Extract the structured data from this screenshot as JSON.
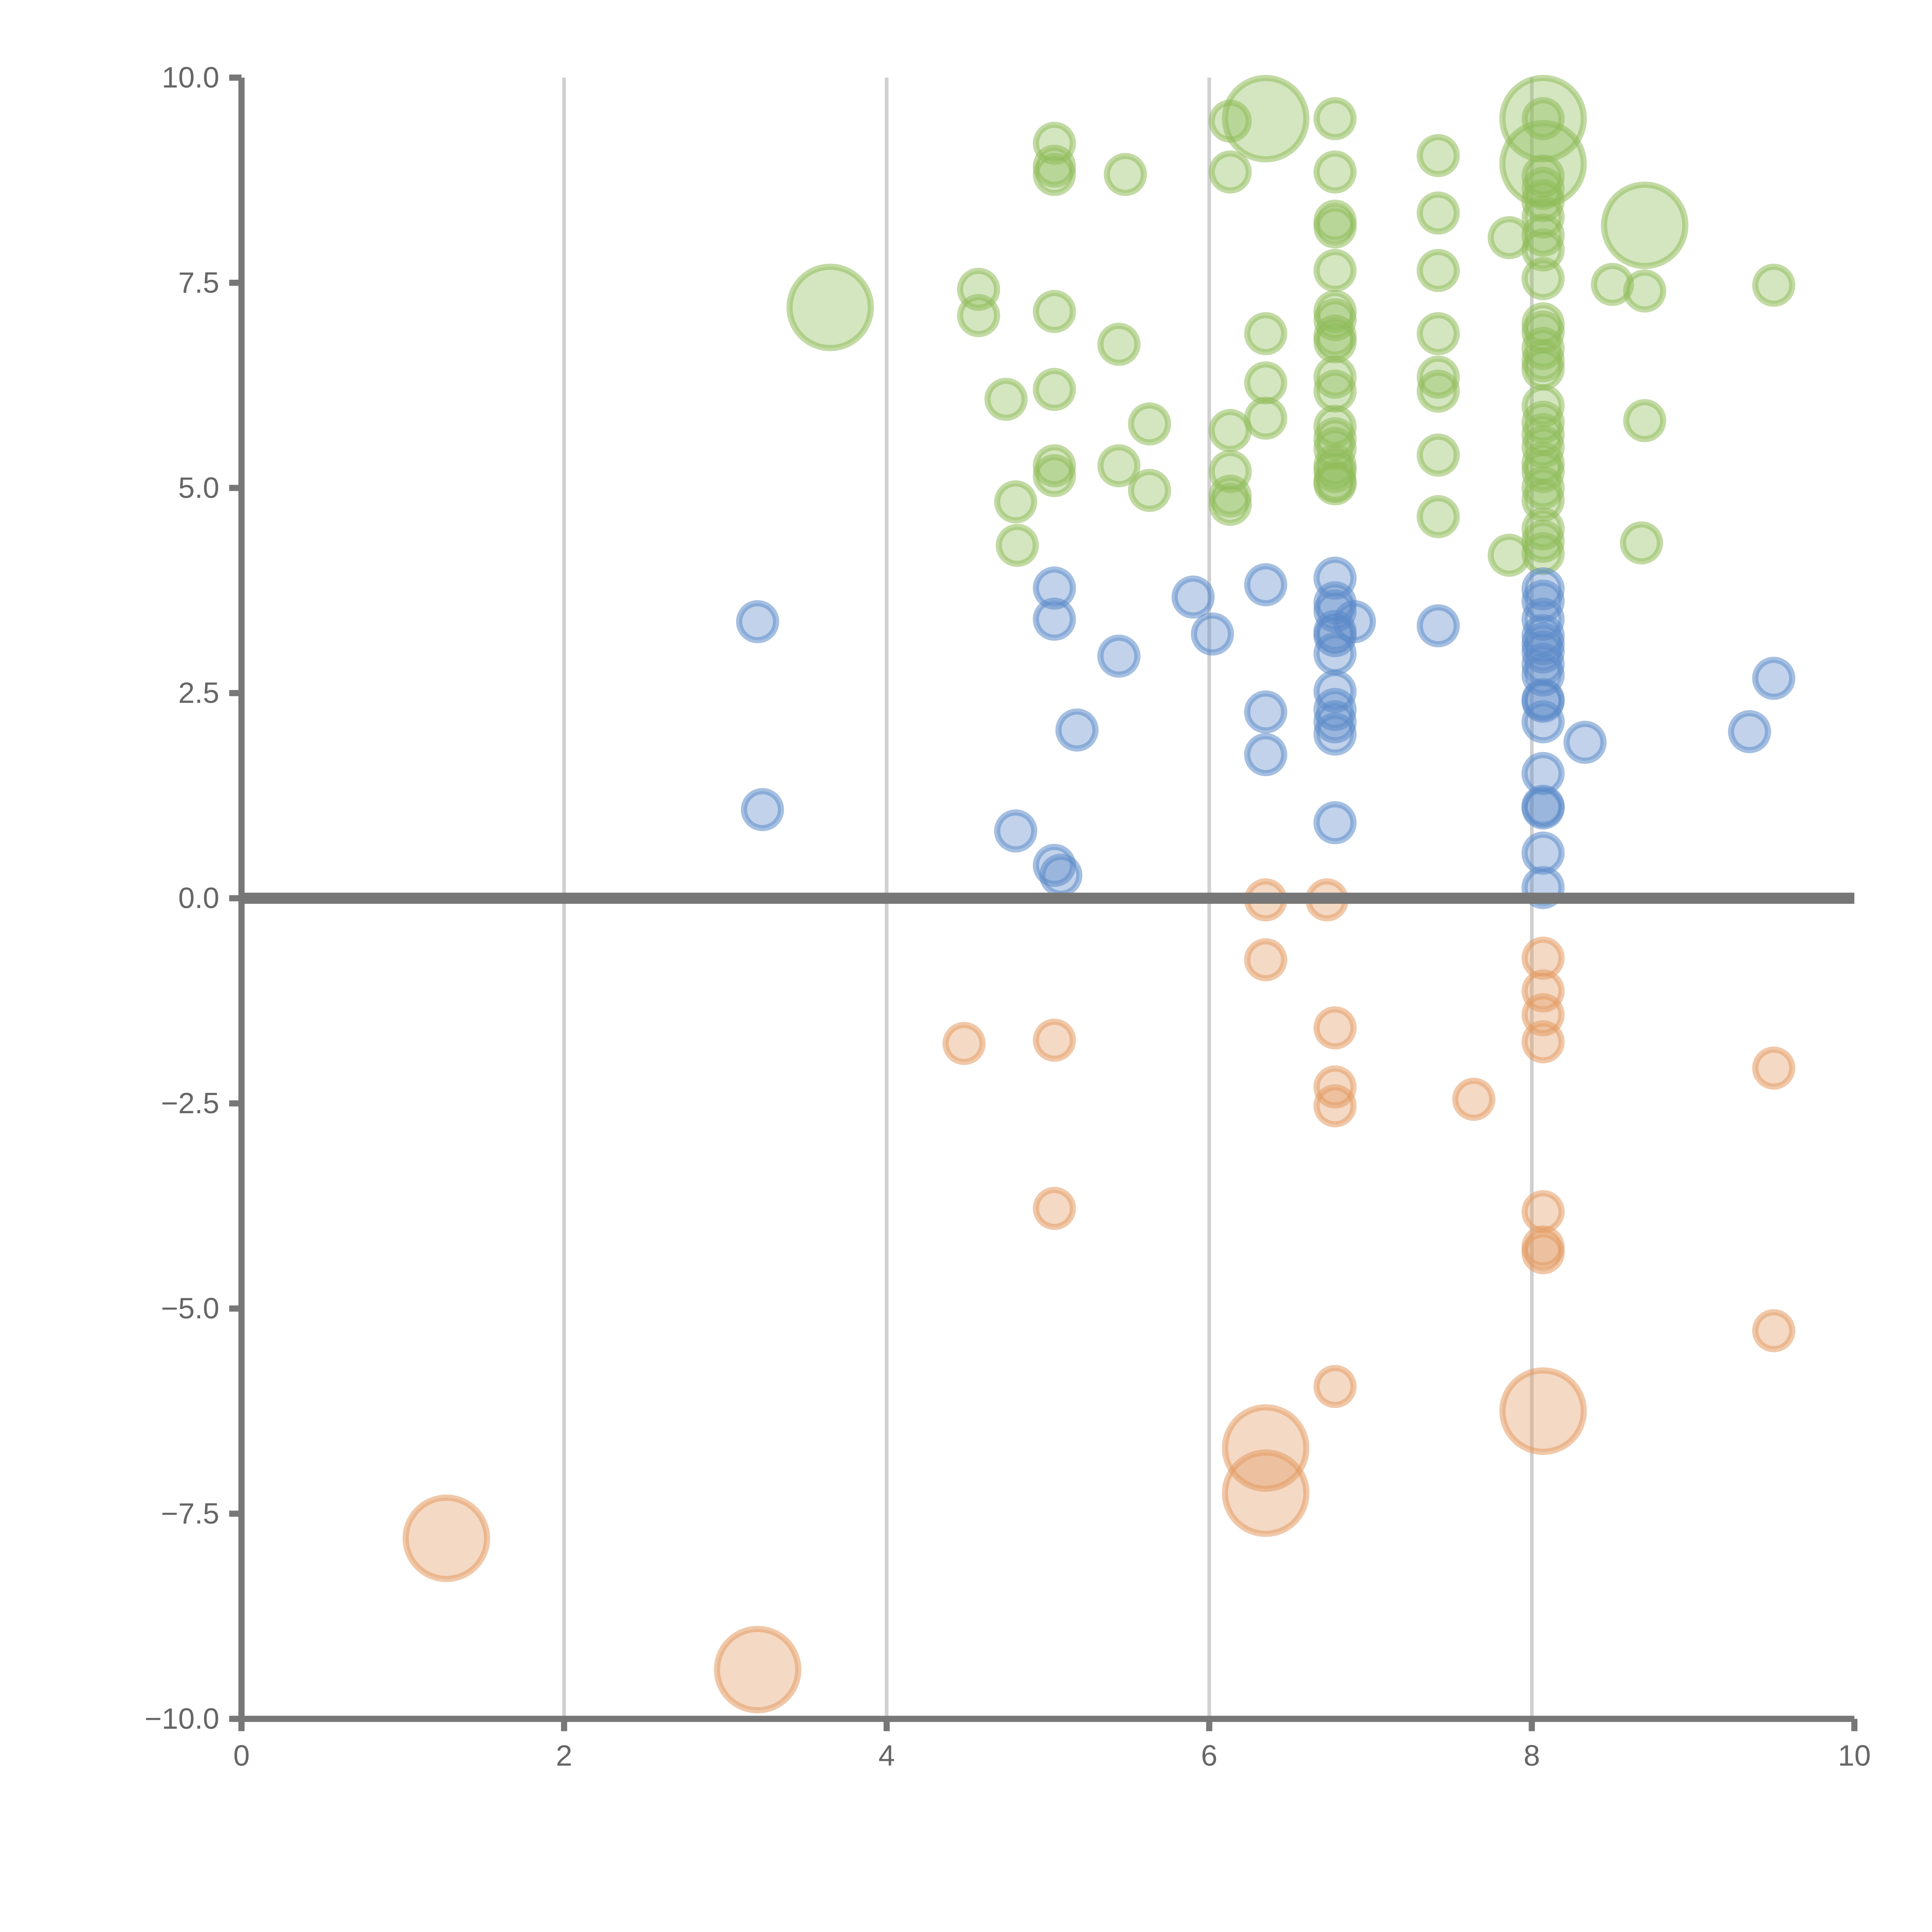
{
  "chart_data": {
    "type": "scatter",
    "xlim": [
      0,
      10
    ],
    "ylim": [
      -10,
      10
    ],
    "x_ticks": [
      "0",
      "2",
      "4",
      "6",
      "8",
      "10"
    ],
    "y_ticks": [
      "10.0",
      "7.5",
      "5.0",
      "2.5",
      "0.0",
      "−2.5",
      "−5.0",
      "−7.5",
      "−10.0"
    ],
    "grid_x": [
      2,
      4,
      6,
      8
    ],
    "zero_line": 0,
    "series": [
      {
        "name": "green",
        "color": "#8fbc5a",
        "points": [
          [
            3.65,
            7.2,
            2.2
          ],
          [
            4.57,
            7.42,
            1
          ],
          [
            4.57,
            7.1,
            1
          ],
          [
            4.74,
            6.08,
            1
          ],
          [
            4.8,
            4.83,
            1
          ],
          [
            4.81,
            4.3,
            1
          ],
          [
            5.04,
            9.2,
            1
          ],
          [
            5.04,
            8.92,
            1
          ],
          [
            5.04,
            8.82,
            1
          ],
          [
            5.04,
            7.15,
            1
          ],
          [
            5.04,
            6.2,
            1
          ],
          [
            5.04,
            5.27,
            1
          ],
          [
            5.04,
            5.15,
            1
          ],
          [
            5.48,
            8.82,
            1
          ],
          [
            5.44,
            6.75,
            1
          ],
          [
            5.44,
            5.27,
            1
          ],
          [
            5.63,
            5.78,
            1
          ],
          [
            5.63,
            4.97,
            1
          ],
          [
            6.13,
            9.47,
            1
          ],
          [
            6.13,
            8.85,
            1
          ],
          [
            6.13,
            5.7,
            1
          ],
          [
            6.13,
            5.2,
            1
          ],
          [
            6.13,
            4.9,
            1
          ],
          [
            6.13,
            4.8,
            1
          ],
          [
            6.35,
            9.5,
            2.2
          ],
          [
            6.35,
            6.88,
            1
          ],
          [
            6.35,
            6.28,
            1
          ],
          [
            6.35,
            5.85,
            1
          ],
          [
            6.78,
            9.5,
            1
          ],
          [
            6.78,
            8.85,
            1
          ],
          [
            6.78,
            8.25,
            1
          ],
          [
            6.78,
            8.18,
            1
          ],
          [
            6.78,
            7.65,
            1
          ],
          [
            6.78,
            7.15,
            1
          ],
          [
            6.78,
            7.05,
            1
          ],
          [
            6.78,
            6.85,
            1
          ],
          [
            6.78,
            6.78,
            1
          ],
          [
            6.78,
            6.35,
            1
          ],
          [
            6.78,
            6.18,
            1
          ],
          [
            6.78,
            5.75,
            1
          ],
          [
            6.78,
            5.6,
            1
          ],
          [
            6.78,
            5.48,
            1
          ],
          [
            6.78,
            5.27,
            1
          ],
          [
            6.78,
            5.2,
            1
          ],
          [
            6.78,
            5.08,
            1
          ],
          [
            6.78,
            5.05,
            1
          ],
          [
            7.42,
            9.05,
            1
          ],
          [
            7.42,
            8.35,
            1
          ],
          [
            7.42,
            7.65,
            1
          ],
          [
            7.42,
            6.88,
            1
          ],
          [
            7.42,
            6.35,
            1
          ],
          [
            7.42,
            6.18,
            1
          ],
          [
            7.42,
            5.4,
            1
          ],
          [
            7.42,
            4.65,
            1
          ],
          [
            7.86,
            8.05,
            1
          ],
          [
            7.86,
            4.18,
            1
          ],
          [
            8.07,
            9.5,
            2.2
          ],
          [
            8.07,
            8.95,
            2.2
          ],
          [
            8.07,
            9.5,
            1
          ],
          [
            8.07,
            8.8,
            1
          ],
          [
            8.07,
            8.65,
            1
          ],
          [
            8.07,
            8.5,
            1
          ],
          [
            8.07,
            8.3,
            1
          ],
          [
            8.07,
            8.08,
            1
          ],
          [
            8.07,
            7.9,
            1
          ],
          [
            8.07,
            7.55,
            1
          ],
          [
            8.07,
            7.0,
            1
          ],
          [
            8.07,
            6.9,
            1
          ],
          [
            8.07,
            6.7,
            1
          ],
          [
            8.07,
            6.55,
            1
          ],
          [
            8.07,
            6.45,
            1
          ],
          [
            8.07,
            6.0,
            1
          ],
          [
            8.07,
            5.8,
            1
          ],
          [
            8.07,
            5.65,
            1
          ],
          [
            8.07,
            5.5,
            1
          ],
          [
            8.07,
            5.3,
            1
          ],
          [
            8.07,
            5.2,
            1
          ],
          [
            8.07,
            5.0,
            1
          ],
          [
            8.07,
            4.85,
            1
          ],
          [
            8.07,
            4.5,
            1
          ],
          [
            8.07,
            4.35,
            1
          ],
          [
            8.07,
            4.2,
            1
          ],
          [
            8.5,
            7.48,
            1
          ],
          [
            8.7,
            8.2,
            2.2
          ],
          [
            8.7,
            7.4,
            1
          ],
          [
            8.7,
            5.82,
            1
          ],
          [
            8.68,
            4.33,
            1
          ],
          [
            9.5,
            7.47,
            1
          ]
        ]
      },
      {
        "name": "blue",
        "color": "#5b8ac9",
        "points": [
          [
            3.2,
            3.37,
            1
          ],
          [
            3.23,
            1.08,
            1
          ],
          [
            4.8,
            0.82,
            1
          ],
          [
            5.04,
            3.78,
            1
          ],
          [
            5.04,
            3.4,
            1
          ],
          [
            5.04,
            0.4,
            1
          ],
          [
            5.08,
            0.28,
            1
          ],
          [
            5.18,
            2.05,
            1
          ],
          [
            5.44,
            2.95,
            1
          ],
          [
            5.9,
            3.67,
            1
          ],
          [
            6.02,
            3.22,
            1
          ],
          [
            6.35,
            3.82,
            1
          ],
          [
            6.35,
            2.27,
            1
          ],
          [
            6.35,
            1.75,
            1
          ],
          [
            6.78,
            3.9,
            1
          ],
          [
            6.78,
            3.6,
            1
          ],
          [
            6.78,
            3.5,
            1
          ],
          [
            6.78,
            3.25,
            1
          ],
          [
            6.78,
            3.2,
            1
          ],
          [
            6.78,
            2.98,
            1
          ],
          [
            6.78,
            2.52,
            1
          ],
          [
            6.78,
            2.3,
            1
          ],
          [
            6.78,
            2.15,
            1
          ],
          [
            6.78,
            2.0,
            1
          ],
          [
            6.78,
            0.92,
            1
          ],
          [
            6.9,
            3.37,
            1
          ],
          [
            7.42,
            3.32,
            1
          ],
          [
            8.07,
            3.77,
            1
          ],
          [
            8.07,
            3.62,
            1
          ],
          [
            8.07,
            3.4,
            1
          ],
          [
            8.07,
            3.2,
            1
          ],
          [
            8.07,
            3.1,
            1
          ],
          [
            8.07,
            3.0,
            1
          ],
          [
            8.07,
            2.85,
            1
          ],
          [
            8.07,
            2.72,
            1
          ],
          [
            8.07,
            2.42,
            1
          ],
          [
            8.07,
            2.4,
            1
          ],
          [
            8.07,
            2.15,
            1
          ],
          [
            8.07,
            1.52,
            1
          ],
          [
            8.07,
            1.12,
            1
          ],
          [
            8.07,
            1.1,
            1
          ],
          [
            8.07,
            0.55,
            1
          ],
          [
            8.07,
            0.13,
            1
          ],
          [
            8.33,
            1.9,
            1
          ],
          [
            9.35,
            2.03,
            1
          ],
          [
            9.5,
            2.68,
            1
          ]
        ]
      },
      {
        "name": "orange",
        "color": "#e39a63",
        "points": [
          [
            1.27,
            -7.8,
            2.2
          ],
          [
            3.2,
            -9.4,
            2.2
          ],
          [
            4.48,
            -1.77,
            1
          ],
          [
            5.04,
            -1.73,
            1
          ],
          [
            5.04,
            -3.78,
            1
          ],
          [
            6.35,
            -0.02,
            1
          ],
          [
            6.35,
            -0.75,
            1
          ],
          [
            6.35,
            -6.7,
            2.2
          ],
          [
            6.35,
            -7.25,
            2.2
          ],
          [
            6.73,
            -0.02,
            1
          ],
          [
            6.78,
            -1.58,
            1
          ],
          [
            6.78,
            -2.3,
            1
          ],
          [
            6.78,
            -2.53,
            1
          ],
          [
            6.78,
            -5.95,
            1
          ],
          [
            7.64,
            -2.45,
            1
          ],
          [
            8.07,
            -0.73,
            1
          ],
          [
            8.07,
            -1.13,
            1
          ],
          [
            8.07,
            -1.42,
            1
          ],
          [
            8.07,
            -1.75,
            1
          ],
          [
            8.07,
            -3.82,
            1
          ],
          [
            8.07,
            -4.25,
            1
          ],
          [
            8.07,
            -4.32,
            1
          ],
          [
            8.07,
            -6.25,
            2.2
          ],
          [
            9.5,
            -2.07,
            1
          ],
          [
            9.5,
            -5.27,
            1
          ]
        ]
      }
    ]
  }
}
